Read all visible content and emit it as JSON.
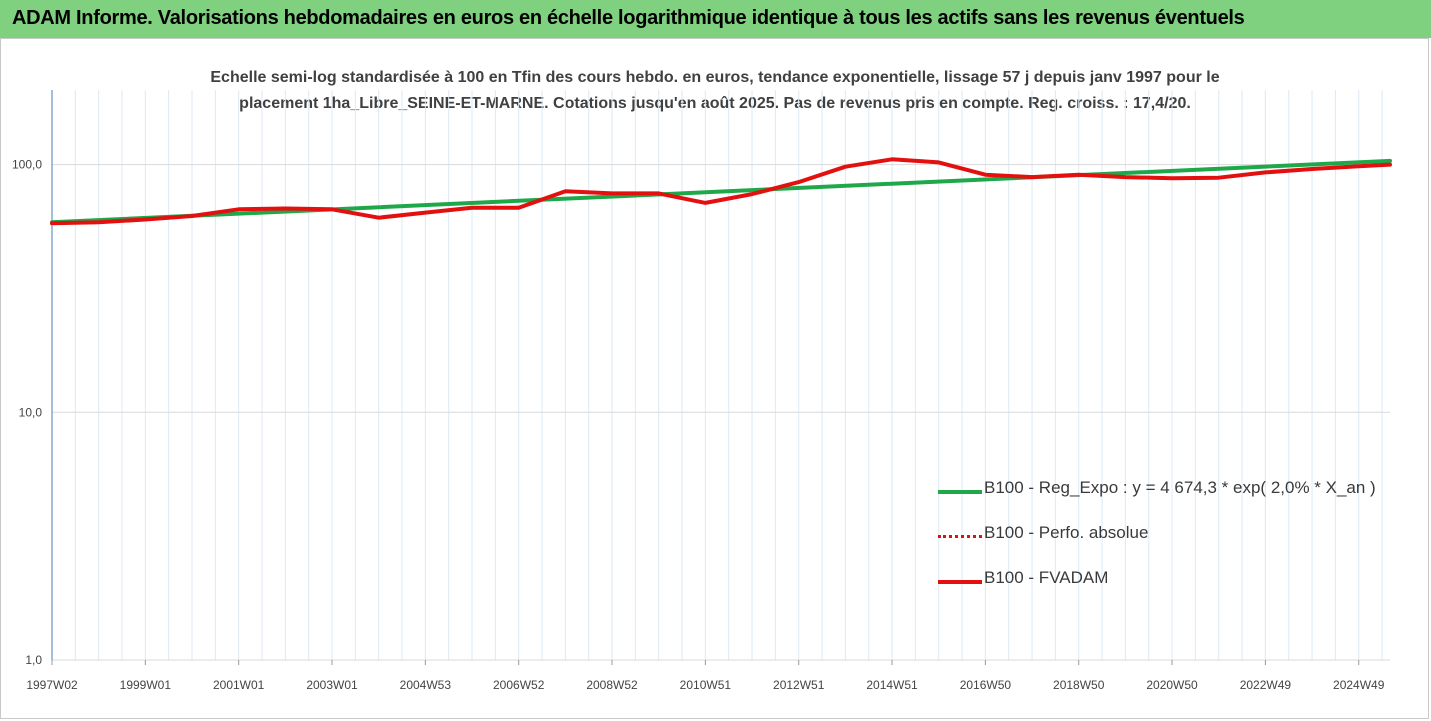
{
  "header": {
    "title": "ADAM Informe. Valorisations hebdomadaires en euros en échelle logarithmique identique à tous les actifs sans les revenus éventuels",
    "background_color": "#7fd07f",
    "corner_color": "#f2b800"
  },
  "chart_data": {
    "type": "line",
    "subtitle_line1": "Echelle semi-log standardisée à 100 en Tfin des cours hebdo. en euros, tendance exponentielle, lissage 57 j depuis janv 1997 pour le",
    "subtitle_line2": "placement 1ha_Libre_SEINE-ET-MARNE. Cotations jusqu'en août 2025. Pas de revenus pris en compte. Reg. croiss. : 17,4/20.",
    "y_scale": "log",
    "ylim": [
      1,
      200
    ],
    "y_ticks": [
      1,
      10,
      100
    ],
    "y_tick_labels": [
      "1,0",
      "10,0",
      "100,0"
    ],
    "xlim": [
      1997.0,
      2025.67
    ],
    "x_tick_labels": [
      "1997W02",
      "1999W01",
      "2001W01",
      "2003W01",
      "2004W53",
      "2006W52",
      "2008W52",
      "2010W51",
      "2012W51",
      "2014W51",
      "2016W50",
      "2018W50",
      "2020W50",
      "2022W49",
      "2024W49"
    ],
    "x_tick_values": [
      1997.0,
      1999.0,
      2001.0,
      2003.0,
      2005.0,
      2007.0,
      2009.0,
      2011.0,
      2013.0,
      2015.0,
      2017.0,
      2019.0,
      2021.0,
      2023.0,
      2025.0
    ],
    "grid": "vertical",
    "legend_position": "bottom-right",
    "series": [
      {
        "name": "B100 - Reg_Expo : y = 4 674,3 * exp( 2,0% *  X_an )",
        "color": "#1fa84a",
        "style": "solid",
        "x": [
          1997.0,
          2025.67
        ],
        "values": [
          58.5,
          103.5
        ]
      },
      {
        "name": "B100 - Perfo. absolue",
        "color": "#e31010",
        "style": "dotted",
        "x": [],
        "values": []
      },
      {
        "name": "B100 - FVADAM",
        "color": "#e31010",
        "style": "solid",
        "x": [
          1997.0,
          1998.0,
          1999.0,
          2000.0,
          2001.0,
          2002.0,
          2003.0,
          2004.0,
          2005.0,
          2006.0,
          2007.0,
          2008.0,
          2009.0,
          2010.0,
          2011.0,
          2012.0,
          2013.0,
          2014.0,
          2015.0,
          2016.0,
          2017.0,
          2018.0,
          2019.0,
          2020.0,
          2021.0,
          2022.0,
          2023.0,
          2024.0,
          2025.0,
          2025.67
        ],
        "values": [
          58,
          58.5,
          60,
          62,
          66,
          66.5,
          66,
          61,
          64,
          67,
          67,
          78,
          76.5,
          76.5,
          70,
          76,
          85,
          98,
          105,
          102,
          91,
          89,
          91,
          89,
          88,
          88.5,
          93,
          96,
          98.5,
          100
        ]
      }
    ]
  }
}
